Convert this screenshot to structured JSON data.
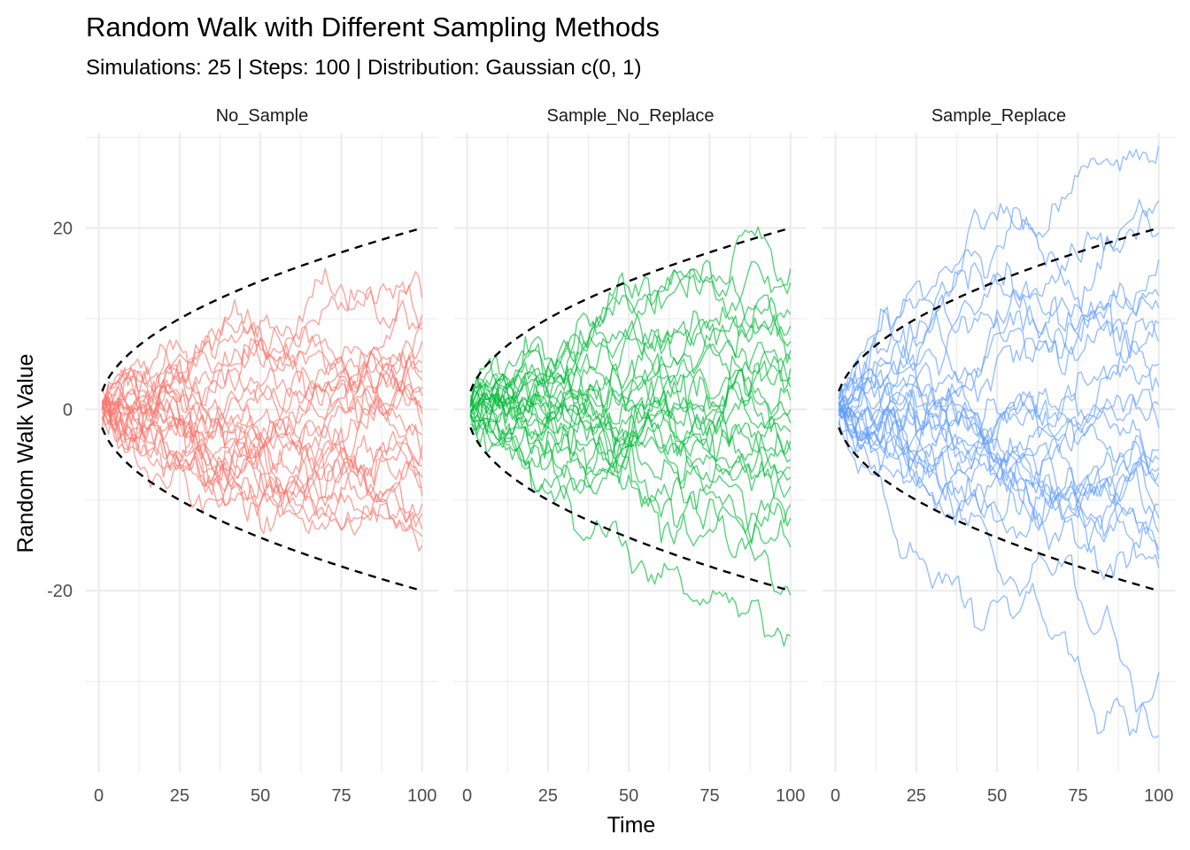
{
  "chart_data": {
    "type": "line",
    "title": "Random Walk with Different Sampling Methods",
    "subtitle": "Simulations: 25 | Steps: 100 | Distribution: Gaussian c(0, 1)",
    "xlabel": "Time",
    "ylabel": "Random Walk Value",
    "xlim": [
      -4,
      105
    ],
    "ylim": [
      -40,
      30.5
    ],
    "x_ticks": [
      0,
      25,
      50,
      75,
      100
    ],
    "x_tick_labels": [
      "0",
      "25",
      "50",
      "75",
      "100"
    ],
    "y_ticks": [
      -20,
      0,
      20
    ],
    "y_tick_labels": [
      "-20",
      "0",
      "20"
    ],
    "grid": true,
    "legend": "none",
    "bounds": {
      "formula": "±2·sqrt(t)",
      "style": "dashed",
      "color": "#000000"
    },
    "n_simulations": 25,
    "n_steps": 100,
    "panels": [
      {
        "name": "No_Sample",
        "color": "#F8766D",
        "end_values": [
          12.3,
          10.4,
          9.6,
          8.8,
          7.5,
          5.1,
          4.2,
          3.3,
          2.5,
          1.5,
          0.2,
          -0.5,
          -1.8,
          -2.8,
          -4.0,
          -5.5,
          -6.2,
          -7.5,
          -8.6,
          -9.5,
          -10.4,
          -11.5,
          -13.2,
          -14.0,
          -15.0
        ],
        "extremes": {
          "max": 15.5,
          "min": -16.0
        }
      },
      {
        "name": "Sample_No_Replace",
        "color": "#00BA38",
        "end_values": [
          15.5,
          14.0,
          10.5,
          9.2,
          7.5,
          6.5,
          5.5,
          4.5,
          3.5,
          2.5,
          1.0,
          0.0,
          -1.5,
          -2.5,
          -3.5,
          -4.5,
          -5.5,
          -6.5,
          -7.5,
          -8.5,
          -10.5,
          -12.0,
          -15.2,
          -20.5,
          -25.0
        ],
        "extremes": {
          "max": 16.8,
          "min": -28.0
        }
      },
      {
        "name": "Sample_Replace",
        "color": "#619CFF",
        "end_values": [
          29.0,
          23.0,
          19.5,
          16.5,
          12.5,
          11.2,
          9.5,
          7.5,
          5.0,
          2.5,
          0.5,
          -2.0,
          -4.5,
          -5.5,
          -6.5,
          -7.0,
          -8.5,
          -10.5,
          -12.0,
          -13.5,
          -15.5,
          -16.5,
          -17.5,
          -29.0,
          -36.0
        ],
        "extremes": {
          "max": 29.2,
          "min": -36.5
        }
      }
    ]
  }
}
